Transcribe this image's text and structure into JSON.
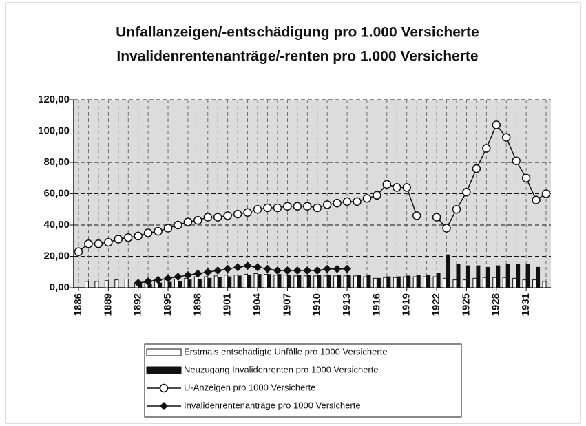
{
  "chart_data": {
    "type": "combo",
    "title": "Unfallanzeigen/-entschädigung pro 1.000 Versicherte",
    "subtitle": "Invalidenrentenanträge/-renten pro 1.000 Versicherte",
    "categories": [
      "1886",
      null,
      null,
      "1889",
      null,
      null,
      "1892",
      null,
      null,
      "1895",
      null,
      null,
      "1898",
      null,
      null,
      "1901",
      null,
      null,
      "1904",
      null,
      null,
      "1907",
      null,
      null,
      "1910",
      null,
      null,
      "1913",
      null,
      null,
      "1916",
      null,
      null,
      "1919",
      null,
      null,
      "1922",
      null,
      null,
      "1925",
      null,
      null,
      "1928",
      null,
      null,
      "1931",
      null,
      null
    ],
    "ylim": [
      0,
      120
    ],
    "yticks": [
      {
        "value": 0,
        "label": "0,00"
      },
      {
        "value": 20,
        "label": "20,00"
      },
      {
        "value": 40,
        "label": "40,00"
      },
      {
        "value": 60,
        "label": "60,00"
      },
      {
        "value": 80,
        "label": "80,00"
      },
      {
        "value": 100,
        "label": "100,00"
      },
      {
        "value": 120,
        "label": "120,00"
      }
    ],
    "grid": true,
    "series": [
      {
        "name": "Erstmals entschädigte Unfälle pro 1000 Versicherte",
        "type": "bar",
        "color": "#ffffff",
        "values": [
          null,
          4,
          4,
          4.5,
          5,
          5.5,
          3,
          3.5,
          4,
          5,
          5.5,
          6,
          7,
          7,
          7.5,
          8,
          8,
          8.5,
          9,
          8.5,
          8,
          8,
          7.5,
          7.5,
          7.5,
          7.5,
          7.5,
          7.5,
          7.5,
          7,
          6,
          6.5,
          6.5,
          7,
          7,
          7,
          7,
          6,
          5,
          5,
          6,
          6.5,
          6.5,
          6.5,
          6,
          5,
          5,
          4
        ]
      },
      {
        "name": "Neuzugang Invalidenrenten pro 1000 Versicherte",
        "type": "bar",
        "color": "#111111",
        "values": [
          null,
          null,
          null,
          null,
          null,
          null,
          2,
          2.5,
          3,
          3.5,
          4,
          5,
          5.5,
          6,
          6.5,
          7,
          7.5,
          8,
          8.5,
          8.5,
          8.5,
          8,
          8,
          8,
          8,
          8,
          8,
          8,
          8,
          8,
          6,
          7,
          7,
          7.5,
          8,
          8,
          9,
          21,
          15,
          14,
          14,
          13,
          14,
          15,
          15,
          15,
          13,
          null
        ]
      },
      {
        "name": "U-Anzeigen pro 1000 Versicherte",
        "type": "line",
        "marker": "circle",
        "color": "#111111",
        "values": [
          23,
          28,
          28,
          29,
          31,
          32,
          33,
          35,
          36,
          38,
          40,
          42,
          43,
          45,
          45,
          46,
          47,
          48,
          50,
          51,
          51,
          52,
          52,
          52,
          51,
          53,
          54,
          55,
          55,
          57,
          59,
          66,
          64,
          64,
          46,
          null,
          45,
          38,
          50,
          61,
          76,
          89,
          104,
          96,
          81,
          70,
          56,
          60
        ]
      },
      {
        "name": "Invalidenrentenanträge pro 1000 Versicherte",
        "type": "line",
        "marker": "diamond",
        "color": "#111111",
        "values": [
          null,
          null,
          null,
          null,
          null,
          null,
          3,
          4,
          5,
          6,
          7,
          8,
          9,
          10,
          11,
          12,
          13,
          14,
          13,
          12,
          11,
          11,
          11,
          11,
          11,
          12,
          12,
          12,
          null,
          null,
          null,
          null,
          null,
          null,
          null,
          null,
          null,
          null,
          null,
          null,
          null,
          null,
          null,
          null,
          null,
          null,
          null,
          null
        ]
      }
    ]
  }
}
